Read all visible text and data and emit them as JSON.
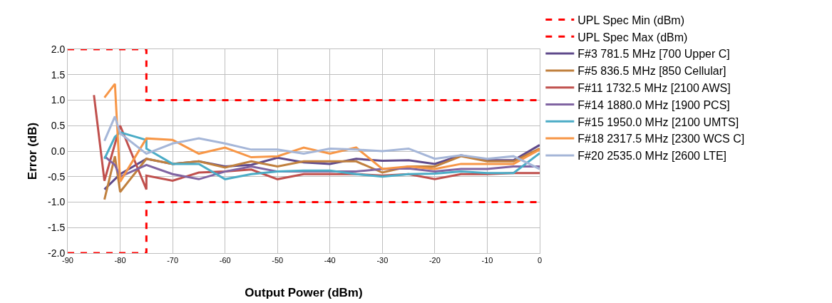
{
  "chart_data": {
    "type": "line",
    "xlabel": "Output Power (dBm)",
    "ylabel": "Error (dB)",
    "xlim": [
      -90,
      0
    ],
    "xticks": [
      -90,
      -80,
      -70,
      -60,
      -50,
      -40,
      -30,
      -20,
      -10,
      0
    ],
    "ylim": [
      -2,
      2
    ],
    "yticks": [
      {
        "value": -2,
        "label": "-2.0"
      },
      {
        "value": -1.5,
        "label": "-1.5"
      },
      {
        "value": -1,
        "label": "-1.0"
      },
      {
        "value": -0.5,
        "label": "-0.5"
      },
      {
        "value": 0,
        "label": "0.0"
      },
      {
        "value": 0.5,
        "label": "0.5"
      },
      {
        "value": 1,
        "label": "1.0"
      },
      {
        "value": 1.5,
        "label": "1.5"
      },
      {
        "value": 2,
        "label": "2.0"
      }
    ],
    "grid": true,
    "legend": "right",
    "marker": "none",
    "line_style": "solid",
    "series": [
      {
        "name": "UPL Spec Min (dBm)",
        "color": "#ff0000",
        "line_style": "dashed",
        "x": [
          -90,
          -75,
          -75,
          0
        ],
        "values": [
          -2,
          -2,
          -1,
          -1
        ]
      },
      {
        "name": "UPL Spec Max (dBm)",
        "color": "#ff0000",
        "line_style": "dashed",
        "x": [
          -90,
          -75,
          -75,
          0
        ],
        "values": [
          2,
          2,
          1,
          1
        ]
      },
      {
        "name": "F#3 781.5 MHz [700 Upper C]",
        "color": "#5f4a8b",
        "x": [
          -83,
          -80,
          -75,
          -70,
          -65,
          -60,
          -55,
          -50,
          -45,
          -40,
          -35,
          -30,
          -25,
          -20,
          -15,
          -10,
          -5,
          0
        ],
        "values": [
          -0.75,
          -0.45,
          -0.15,
          -0.25,
          -0.2,
          -0.3,
          -0.27,
          -0.13,
          -0.22,
          -0.25,
          -0.15,
          -0.19,
          -0.18,
          -0.25,
          -0.08,
          -0.18,
          -0.18,
          0.12
        ]
      },
      {
        "name": "F#5 836.5 MHz [850 Cellular]",
        "color": "#c0803e",
        "x": [
          -83,
          -81,
          -80,
          -75,
          -70,
          -65,
          -60,
          -55,
          -50,
          -45,
          -40,
          -35,
          -30,
          -25,
          -20,
          -15,
          -10,
          -5,
          0
        ],
        "values": [
          -0.95,
          -0.1,
          -0.8,
          -0.15,
          -0.25,
          -0.2,
          -0.32,
          -0.2,
          -0.3,
          -0.2,
          -0.2,
          -0.2,
          -0.42,
          -0.3,
          -0.3,
          -0.1,
          -0.2,
          -0.2,
          0.05
        ]
      },
      {
        "name": "F#11 1732.5 MHz [2100 AWS]",
        "color": "#c0504d",
        "x": [
          -85,
          -83,
          -80,
          -75,
          -75,
          -70,
          -65,
          -60,
          -55,
          -50,
          -45,
          -40,
          -35,
          -30,
          -25,
          -20,
          -15,
          -10,
          -5,
          0
        ],
        "values": [
          1.1,
          -0.58,
          0.5,
          -0.75,
          -0.48,
          -0.58,
          -0.42,
          -0.4,
          -0.36,
          -0.55,
          -0.45,
          -0.45,
          -0.45,
          -0.48,
          -0.45,
          -0.55,
          -0.45,
          -0.45,
          -0.43,
          -0.43
        ]
      },
      {
        "name": "F#14 1880.0 MHz [1900 PCS]",
        "color": "#8064a2",
        "x": [
          -83,
          -81,
          -80,
          -75,
          -70,
          -65,
          -60,
          -55,
          -50,
          -45,
          -40,
          -35,
          -30,
          -25,
          -20,
          -15,
          -10,
          -5,
          0
        ],
        "values": [
          -0.1,
          -0.27,
          -0.5,
          -0.27,
          -0.45,
          -0.55,
          -0.4,
          -0.3,
          -0.4,
          -0.4,
          -0.4,
          -0.4,
          -0.35,
          -0.34,
          -0.4,
          -0.35,
          -0.35,
          -0.3,
          -0.3
        ]
      },
      {
        "name": "F#15 1950.0 MHz [2100 UMTS]",
        "color": "#4bacc6",
        "x": [
          -83,
          -81,
          -80,
          -75,
          -75,
          -70,
          -65,
          -60,
          -55,
          -50,
          -45,
          -40,
          -35,
          -30,
          -25,
          -20,
          -15,
          -10,
          -5,
          0
        ],
        "values": [
          -0.15,
          0.28,
          0.37,
          0.22,
          0.05,
          -0.25,
          -0.25,
          -0.55,
          -0.45,
          -0.4,
          -0.38,
          -0.38,
          -0.45,
          -0.5,
          -0.45,
          -0.44,
          -0.4,
          -0.43,
          -0.43,
          -0.04
        ]
      },
      {
        "name": "F#18 2317.5 MHz [2300 WCS C]",
        "color": "#f79646",
        "x": [
          -83,
          -81,
          -80,
          -75,
          -70,
          -65,
          -60,
          -55,
          -50,
          -45,
          -40,
          -35,
          -30,
          -25,
          -20,
          -15,
          -10,
          -5,
          0
        ],
        "values": [
          1.05,
          1.32,
          -0.6,
          0.25,
          0.22,
          -0.05,
          0.07,
          -0.12,
          -0.1,
          0.07,
          -0.05,
          0.07,
          -0.35,
          -0.3,
          -0.35,
          -0.25,
          -0.25,
          -0.25,
          0.03
        ]
      },
      {
        "name": "F#20 2535.0 MHz [2600 LTE]",
        "color": "#a5b6d8",
        "x": [
          -83,
          -81,
          -80,
          -75,
          -70,
          -65,
          -60,
          -55,
          -50,
          -45,
          -40,
          -35,
          -30,
          -25,
          -20,
          -15,
          -10,
          -5,
          0
        ],
        "values": [
          0.2,
          0.68,
          0.35,
          -0.05,
          0.15,
          0.25,
          0.15,
          0.03,
          0.03,
          -0.05,
          0.05,
          0.03,
          0.0,
          0.05,
          -0.15,
          -0.08,
          -0.15,
          -0.1,
          -0.35
        ]
      }
    ]
  }
}
